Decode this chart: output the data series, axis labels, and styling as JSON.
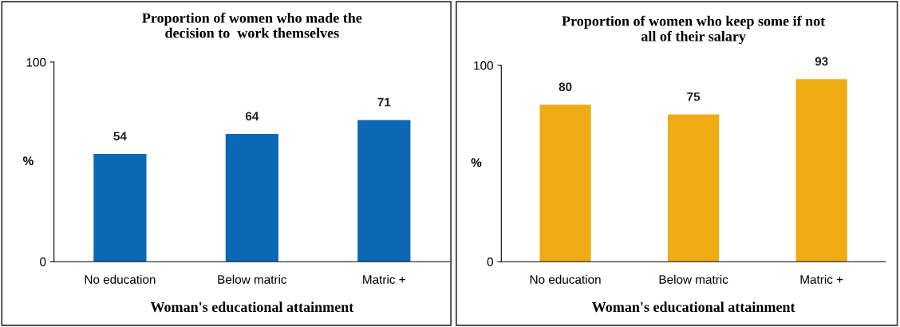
{
  "chart_data": [
    {
      "type": "bar",
      "title": "Proportion of women who made the\ndecision to  work themselves",
      "xlabel": "Woman's educational attainment",
      "ylabel": "%",
      "categories": [
        "No education",
        "Below matric",
        "Matric +"
      ],
      "values": [
        54,
        64,
        71
      ],
      "color": "#0a68b4",
      "ylim": [
        0,
        100
      ],
      "yticks": [
        0,
        100
      ],
      "data_labels": true,
      "grid": false
    },
    {
      "type": "bar",
      "title": "Proportion of women who keep some if not\nall of their salary",
      "xlabel": "Woman's educational attainment",
      "ylabel": "%",
      "categories": [
        "No education",
        "Below matric",
        "Matric +"
      ],
      "values": [
        80,
        75,
        93
      ],
      "color": "#eeab14",
      "ylim": [
        0,
        100
      ],
      "yticks": [
        0,
        100
      ],
      "data_labels": true,
      "grid": false
    }
  ]
}
